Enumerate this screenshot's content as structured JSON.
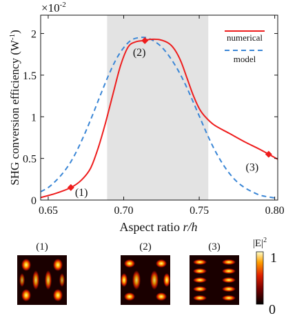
{
  "chart_data": {
    "type": "line",
    "ylabel": "SHG conversion efficiency  (W",
    "ylabel_sup": "-1",
    "ylabel_close": ")",
    "xlabel": "Aspect ratio ",
    "xlabel_italic": "r/h",
    "y_multiplier": "×10",
    "y_multiplier_exp": "-2",
    "xlim": [
      0.645,
      0.802
    ],
    "ylim": [
      0,
      2.22
    ],
    "x_ticks": [
      0.65,
      0.7,
      0.75,
      0.8
    ],
    "x_tick_labels": [
      "0.65",
      "0.70",
      "0.75",
      "0.80"
    ],
    "y_ticks": [
      0,
      0.5,
      1,
      1.5,
      2
    ],
    "y_tick_labels": [
      "0",
      "0.5",
      "1",
      "1.5",
      "2"
    ],
    "shaded_region": [
      0.689,
      0.756
    ],
    "shaded_color": "#e3e3e3",
    "series": [
      {
        "name": "numerical",
        "color": "#ee1c1c",
        "style": "solid",
        "x": [
          0.645,
          0.655,
          0.665,
          0.672,
          0.678,
          0.683,
          0.688,
          0.693,
          0.698,
          0.703,
          0.708,
          0.713,
          0.718,
          0.724,
          0.73,
          0.734,
          0.738,
          0.742,
          0.746,
          0.75,
          0.754,
          0.76,
          0.77,
          0.78,
          0.79,
          0.796,
          0.802
        ],
        "y": [
          0.03,
          0.08,
          0.15,
          0.24,
          0.38,
          0.62,
          0.93,
          1.28,
          1.62,
          1.84,
          1.9,
          1.915,
          1.93,
          1.925,
          1.88,
          1.8,
          1.66,
          1.46,
          1.26,
          1.1,
          1.0,
          0.9,
          0.8,
          0.7,
          0.61,
          0.55,
          0.49
        ]
      },
      {
        "name": "model",
        "color": "#3a86d6",
        "style": "dashed",
        "x": [
          0.645,
          0.65,
          0.655,
          0.66,
          0.665,
          0.67,
          0.675,
          0.68,
          0.685,
          0.69,
          0.695,
          0.7,
          0.705,
          0.71,
          0.715,
          0.72,
          0.725,
          0.73,
          0.735,
          0.74,
          0.745,
          0.75,
          0.755,
          0.76,
          0.765,
          0.77,
          0.775,
          0.78,
          0.785,
          0.79,
          0.795,
          0.802
        ],
        "y": [
          0.1,
          0.15,
          0.23,
          0.33,
          0.46,
          0.63,
          0.83,
          1.05,
          1.28,
          1.5,
          1.69,
          1.83,
          1.92,
          1.95,
          1.95,
          1.91,
          1.84,
          1.73,
          1.59,
          1.42,
          1.22,
          1.01,
          0.8,
          0.61,
          0.45,
          0.32,
          0.22,
          0.15,
          0.1,
          0.06,
          0.04,
          0.02
        ]
      }
    ],
    "markers": [
      {
        "x": 0.665,
        "y": 0.15,
        "label": "(1)"
      },
      {
        "x": 0.714,
        "y": 1.915,
        "label": "(2)"
      },
      {
        "x": 0.796,
        "y": 0.55,
        "label": "(3)"
      }
    ],
    "legend_position": "top-right"
  },
  "field_maps": {
    "labels": [
      "(1)",
      "(2)",
      "(3)"
    ],
    "colorbar_title": "|E|",
    "colorbar_title_sup": "2",
    "colorbar_max": "1",
    "colorbar_min": "0"
  }
}
